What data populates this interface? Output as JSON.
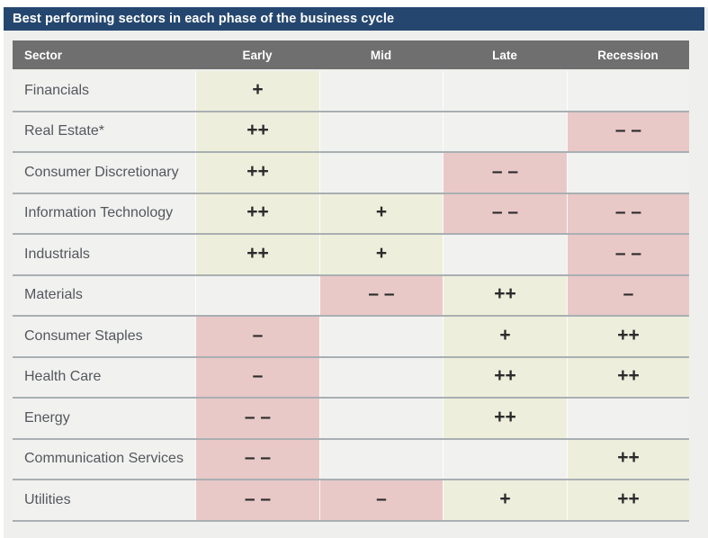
{
  "title_bar": {
    "text": "Best performing sectors in each phase of the business cycle"
  },
  "colors": {
    "title_bg": "#25476F",
    "header_bg": "#6F6F6F",
    "positive_bg": "#EDEFDC",
    "negative_bg": "#E9C8C8",
    "neutral_bg": "#F1F1F0",
    "panel_bg": "#EFEFEE"
  },
  "chart_data": {
    "type": "table",
    "title": "Best performing sectors in each phase of the business cycle",
    "columns": [
      "Sector",
      "Early",
      "Mid",
      "Late",
      "Recession"
    ],
    "tone_meaning": {
      "positive": "outperforms (green)",
      "negative": "underperforms (red)",
      "none": "neutral / no signal"
    },
    "rows": [
      {
        "sector": "Financials",
        "cells": [
          {
            "symbol": "+",
            "tone": "positive"
          },
          {
            "symbol": "",
            "tone": "none"
          },
          {
            "symbol": "",
            "tone": "none"
          },
          {
            "symbol": "",
            "tone": "none"
          }
        ]
      },
      {
        "sector": "Real Estate*",
        "cells": [
          {
            "symbol": "++",
            "tone": "positive"
          },
          {
            "symbol": "",
            "tone": "none"
          },
          {
            "symbol": "",
            "tone": "none"
          },
          {
            "symbol": "– –",
            "tone": "negative"
          }
        ]
      },
      {
        "sector": "Consumer Discretionary",
        "cells": [
          {
            "symbol": "++",
            "tone": "positive"
          },
          {
            "symbol": "",
            "tone": "none"
          },
          {
            "symbol": "– –",
            "tone": "negative"
          },
          {
            "symbol": "",
            "tone": "none"
          }
        ]
      },
      {
        "sector": "Information Technology",
        "cells": [
          {
            "symbol": "++",
            "tone": "positive"
          },
          {
            "symbol": "+",
            "tone": "positive"
          },
          {
            "symbol": "– –",
            "tone": "negative"
          },
          {
            "symbol": "– –",
            "tone": "negative"
          }
        ]
      },
      {
        "sector": "Industrials",
        "cells": [
          {
            "symbol": "++",
            "tone": "positive"
          },
          {
            "symbol": "+",
            "tone": "positive"
          },
          {
            "symbol": "",
            "tone": "none"
          },
          {
            "symbol": "– –",
            "tone": "negative"
          }
        ]
      },
      {
        "sector": "Materials",
        "cells": [
          {
            "symbol": "",
            "tone": "none"
          },
          {
            "symbol": "– –",
            "tone": "negative"
          },
          {
            "symbol": "++",
            "tone": "positive"
          },
          {
            "symbol": "–",
            "tone": "negative"
          }
        ]
      },
      {
        "sector": "Consumer Staples",
        "cells": [
          {
            "symbol": "–",
            "tone": "negative"
          },
          {
            "symbol": "",
            "tone": "none"
          },
          {
            "symbol": "+",
            "tone": "positive"
          },
          {
            "symbol": "++",
            "tone": "positive"
          }
        ]
      },
      {
        "sector": "Health Care",
        "cells": [
          {
            "symbol": "–",
            "tone": "negative"
          },
          {
            "symbol": "",
            "tone": "none"
          },
          {
            "symbol": "++",
            "tone": "positive"
          },
          {
            "symbol": "++",
            "tone": "positive"
          }
        ]
      },
      {
        "sector": "Energy",
        "cells": [
          {
            "symbol": "– –",
            "tone": "negative"
          },
          {
            "symbol": "",
            "tone": "none"
          },
          {
            "symbol": "++",
            "tone": "positive"
          },
          {
            "symbol": "",
            "tone": "none"
          }
        ]
      },
      {
        "sector": "Communication Services",
        "cells": [
          {
            "symbol": "– –",
            "tone": "negative"
          },
          {
            "symbol": "",
            "tone": "none"
          },
          {
            "symbol": "",
            "tone": "none"
          },
          {
            "symbol": "++",
            "tone": "positive"
          }
        ]
      },
      {
        "sector": "Utilities",
        "cells": [
          {
            "symbol": "– –",
            "tone": "negative"
          },
          {
            "symbol": "–",
            "tone": "negative"
          },
          {
            "symbol": "+",
            "tone": "positive"
          },
          {
            "symbol": "++",
            "tone": "positive"
          }
        ]
      }
    ]
  }
}
